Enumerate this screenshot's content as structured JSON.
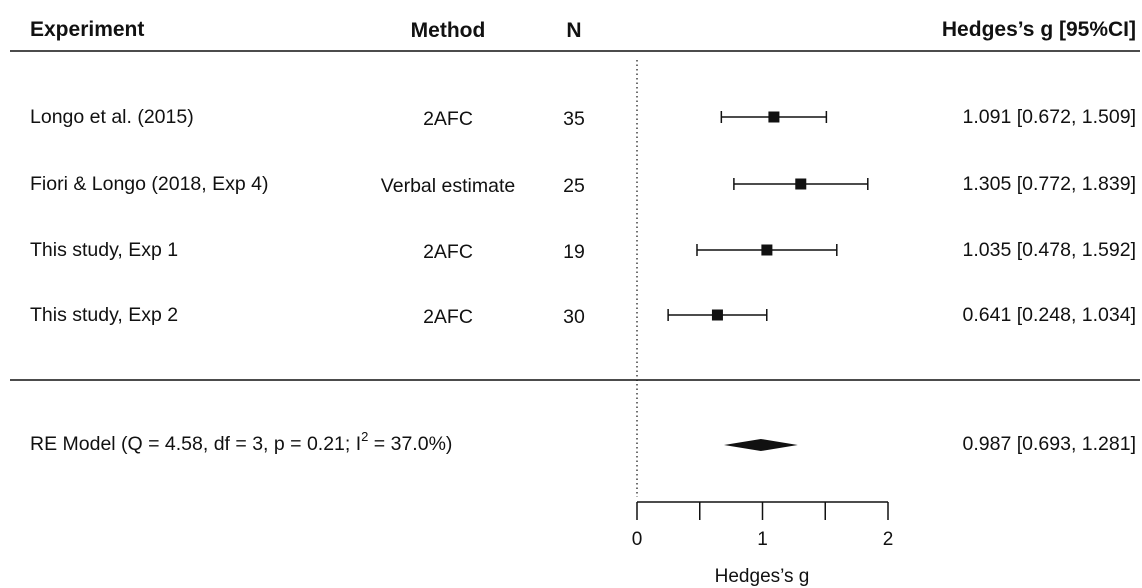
{
  "chart_data": {
    "type": "forest",
    "headers": {
      "experiment": "Experiment",
      "method": "Method",
      "n": "N",
      "effect": "Hedges’s g [95%CI]"
    },
    "studies": [
      {
        "experiment": "Longo et al. (2015)",
        "method": "2AFC",
        "n": "35",
        "g": 1.091,
        "ci_low": 0.672,
        "ci_high": 1.509,
        "label": "1.091 [0.672, 1.509]"
      },
      {
        "experiment": "Fiori & Longo (2018, Exp 4)",
        "method": "Verbal estimate",
        "n": "25",
        "g": 1.305,
        "ci_low": 0.772,
        "ci_high": 1.839,
        "label": "1.305 [0.772, 1.839]"
      },
      {
        "experiment": "This study, Exp 1",
        "method": "2AFC",
        "n": "19",
        "g": 1.035,
        "ci_low": 0.478,
        "ci_high": 1.592,
        "label": "1.035 [0.478, 1.592]"
      },
      {
        "experiment": "This study, Exp 2",
        "method": "2AFC",
        "n": "30",
        "g": 0.641,
        "ci_low": 0.248,
        "ci_high": 1.034,
        "label": "0.641 [0.248, 1.034]"
      }
    ],
    "summary": {
      "label_main": "RE Model (Q = 4.58, df = 3, p = 0.21; I",
      "label_sup": "2",
      "label_tail": " = 37.0%)",
      "g": 0.987,
      "ci_low": 0.693,
      "ci_high": 1.281,
      "value_label": "0.987 [0.693, 1.281]"
    },
    "x_axis": {
      "label": "Hedges’s g",
      "ticks": [
        0,
        0.5,
        1,
        1.5,
        2
      ],
      "tick_labels": [
        "0",
        "",
        "1",
        "",
        "2"
      ],
      "range": [
        0,
        2
      ]
    },
    "reference_line": 0
  }
}
